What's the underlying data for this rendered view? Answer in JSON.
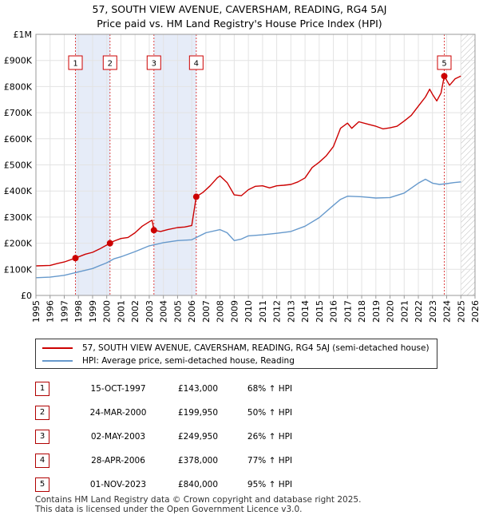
{
  "title_line1": "57, SOUTH VIEW AVENUE, CAVERSHAM, READING, RG4 5AJ",
  "title_line2": "Price paid vs. HM Land Registry's House Price Index (HPI)",
  "colors": {
    "property": "#cc0000",
    "hpi": "#6699cc",
    "shade": "#e6ecf8",
    "marker": "#cc0000"
  },
  "chart_data": {
    "type": "line",
    "xlabel": "",
    "ylabel": "",
    "xlim": [
      1995,
      2026
    ],
    "ylim": [
      0,
      1000000
    ],
    "grid": true,
    "y_ticks": [
      {
        "value": 0,
        "label": "£0"
      },
      {
        "value": 100000,
        "label": "£100K"
      },
      {
        "value": 200000,
        "label": "£200K"
      },
      {
        "value": 300000,
        "label": "£300K"
      },
      {
        "value": 400000,
        "label": "£400K"
      },
      {
        "value": 500000,
        "label": "£500K"
      },
      {
        "value": 600000,
        "label": "£600K"
      },
      {
        "value": 700000,
        "label": "£700K"
      },
      {
        "value": 800000,
        "label": "£800K"
      },
      {
        "value": 900000,
        "label": "£900K"
      },
      {
        "value": 1000000,
        "label": "£1M"
      }
    ],
    "x_ticks": [
      "1995",
      "1996",
      "1997",
      "1998",
      "1999",
      "2000",
      "2001",
      "2002",
      "2003",
      "2004",
      "2005",
      "2006",
      "2007",
      "2008",
      "2009",
      "2010",
      "2011",
      "2012",
      "2013",
      "2014",
      "2015",
      "2016",
      "2017",
      "2018",
      "2019",
      "2020",
      "2021",
      "2022",
      "2023",
      "2024",
      "2025",
      "2026"
    ],
    "shaded_periods": [
      [
        1997.79,
        2000.23
      ],
      [
        2003.33,
        2006.32
      ]
    ],
    "hatched_from": 2025.0,
    "series": [
      {
        "name": "57, SOUTH VIEW AVENUE, CAVERSHAM, READING, RG4 5AJ (semi-detached house)",
        "color": "#cc0000",
        "points": [
          [
            1995.0,
            113000
          ],
          [
            1996.0,
            115000
          ],
          [
            1996.5,
            122000
          ],
          [
            1997.0,
            128000
          ],
          [
            1997.79,
            143000
          ],
          [
            1998.5,
            158000
          ],
          [
            1999.0,
            165000
          ],
          [
            1999.5,
            178000
          ],
          [
            2000.23,
            199950
          ],
          [
            2000.5,
            208000
          ],
          [
            2001.0,
            218000
          ],
          [
            2001.5,
            222000
          ],
          [
            2002.0,
            240000
          ],
          [
            2002.5,
            265000
          ],
          [
            2003.0,
            282000
          ],
          [
            2003.2,
            288000
          ],
          [
            2003.33,
            249950
          ],
          [
            2003.8,
            245000
          ],
          [
            2004.3,
            252000
          ],
          [
            2005.0,
            260000
          ],
          [
            2005.5,
            262000
          ],
          [
            2006.0,
            268000
          ],
          [
            2006.32,
            378000
          ],
          [
            2006.8,
            395000
          ],
          [
            2007.3,
            420000
          ],
          [
            2007.8,
            450000
          ],
          [
            2008.0,
            458000
          ],
          [
            2008.5,
            432000
          ],
          [
            2009.0,
            385000
          ],
          [
            2009.5,
            382000
          ],
          [
            2010.0,
            405000
          ],
          [
            2010.5,
            418000
          ],
          [
            2011.0,
            420000
          ],
          [
            2011.5,
            412000
          ],
          [
            2012.0,
            420000
          ],
          [
            2012.5,
            422000
          ],
          [
            2013.0,
            425000
          ],
          [
            2013.5,
            435000
          ],
          [
            2014.0,
            450000
          ],
          [
            2014.5,
            490000
          ],
          [
            2015.0,
            510000
          ],
          [
            2015.5,
            535000
          ],
          [
            2016.0,
            570000
          ],
          [
            2016.5,
            640000
          ],
          [
            2017.0,
            660000
          ],
          [
            2017.3,
            640000
          ],
          [
            2017.8,
            665000
          ],
          [
            2018.5,
            655000
          ],
          [
            2019.0,
            648000
          ],
          [
            2019.5,
            638000
          ],
          [
            2020.0,
            642000
          ],
          [
            2020.5,
            648000
          ],
          [
            2021.0,
            668000
          ],
          [
            2021.5,
            690000
          ],
          [
            2022.0,
            725000
          ],
          [
            2022.5,
            760000
          ],
          [
            2022.8,
            790000
          ],
          [
            2023.0,
            770000
          ],
          [
            2023.3,
            745000
          ],
          [
            2023.6,
            775000
          ],
          [
            2023.83,
            840000
          ],
          [
            2024.2,
            805000
          ],
          [
            2024.6,
            830000
          ],
          [
            2025.0,
            840000
          ]
        ]
      },
      {
        "name": "HPI: Average price, semi-detached house, Reading",
        "color": "#6699cc",
        "points": [
          [
            1995.0,
            68000
          ],
          [
            1996.0,
            70000
          ],
          [
            1997.0,
            77000
          ],
          [
            1998.0,
            90000
          ],
          [
            1999.0,
            103000
          ],
          [
            2000.0,
            125000
          ],
          [
            2000.5,
            140000
          ],
          [
            2001.0,
            148000
          ],
          [
            2002.0,
            168000
          ],
          [
            2003.0,
            190000
          ],
          [
            2004.0,
            202000
          ],
          [
            2005.0,
            210000
          ],
          [
            2006.0,
            213000
          ],
          [
            2007.0,
            240000
          ],
          [
            2008.0,
            252000
          ],
          [
            2008.5,
            240000
          ],
          [
            2009.0,
            210000
          ],
          [
            2009.5,
            216000
          ],
          [
            2010.0,
            228000
          ],
          [
            2011.0,
            232000
          ],
          [
            2012.0,
            238000
          ],
          [
            2013.0,
            245000
          ],
          [
            2014.0,
            265000
          ],
          [
            2015.0,
            298000
          ],
          [
            2016.0,
            345000
          ],
          [
            2016.5,
            368000
          ],
          [
            2017.0,
            380000
          ],
          [
            2018.0,
            378000
          ],
          [
            2019.0,
            373000
          ],
          [
            2020.0,
            375000
          ],
          [
            2021.0,
            392000
          ],
          [
            2022.0,
            430000
          ],
          [
            2022.5,
            445000
          ],
          [
            2023.0,
            430000
          ],
          [
            2023.5,
            425000
          ],
          [
            2024.0,
            428000
          ],
          [
            2024.5,
            432000
          ],
          [
            2025.0,
            435000
          ]
        ]
      }
    ],
    "sales": [
      {
        "id": "1",
        "date": "15-OCT-1997",
        "x": 1997.79,
        "price": "£143,000",
        "value": 143000,
        "hpi": "68% ↑ HPI"
      },
      {
        "id": "2",
        "date": "24-MAR-2000",
        "x": 2000.23,
        "price": "£199,950",
        "value": 199950,
        "hpi": "50% ↑ HPI"
      },
      {
        "id": "3",
        "date": "02-MAY-2003",
        "x": 2003.33,
        "price": "£249,950",
        "value": 249950,
        "hpi": "26% ↑ HPI"
      },
      {
        "id": "4",
        "date": "28-APR-2006",
        "x": 2006.32,
        "price": "£378,000",
        "value": 378000,
        "hpi": "77% ↑ HPI"
      },
      {
        "id": "5",
        "date": "01-NOV-2023",
        "x": 2023.83,
        "price": "£840,000",
        "value": 840000,
        "hpi": "95% ↑ HPI"
      }
    ]
  },
  "legend": {
    "property_label": "57, SOUTH VIEW AVENUE, CAVERSHAM, READING, RG4 5AJ (semi-detached house)",
    "hpi_label": "HPI: Average price, semi-detached house, Reading"
  },
  "footer": {
    "line1": "Contains HM Land Registry data © Crown copyright and database right 2025.",
    "line2": "This data is licensed under the Open Government Licence v3.0."
  }
}
